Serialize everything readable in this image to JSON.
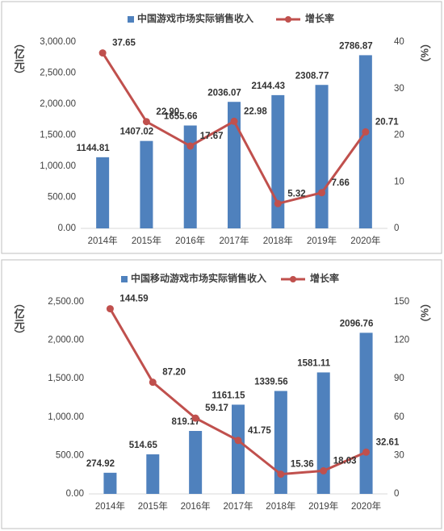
{
  "chart_data": [
    {
      "type": "combo",
      "categories": [
        "2014年",
        "2015年",
        "2016年",
        "2017年",
        "2018年",
        "2019年",
        "2020年"
      ],
      "y_label": "（亿元）",
      "y2_label": "（%）",
      "ylim": [
        0,
        3000
      ],
      "yticks": [
        {
          "value": 0,
          "label": "0.00"
        },
        {
          "value": 500,
          "label": "500.00"
        },
        {
          "value": 1000,
          "label": "1,000.00"
        },
        {
          "value": 1500,
          "label": "1,500.00"
        },
        {
          "value": 2000,
          "label": "2,000.00"
        },
        {
          "value": 2500,
          "label": "2,500.00"
        },
        {
          "value": 3000,
          "label": "3,000.00"
        }
      ],
      "y2lim": [
        0,
        40
      ],
      "y2ticks": [
        0,
        10,
        20,
        30,
        40
      ],
      "series": [
        {
          "name": "中国游戏市场实际销售收入",
          "type": "bar",
          "color": "#4f81bd",
          "values": [
            1144.81,
            1407.02,
            1655.66,
            2036.07,
            2144.43,
            2308.77,
            2786.87
          ]
        },
        {
          "name": "增长率",
          "type": "line",
          "axis": "y2",
          "color": "#c0504d",
          "values": [
            37.65,
            22.9,
            17.67,
            22.98,
            5.32,
            7.66,
            20.71
          ],
          "value_labels": [
            "37.65",
            "22.90",
            "17.67",
            "22.98",
            "5.32",
            "7.66",
            "20.71"
          ]
        }
      ]
    },
    {
      "type": "combo",
      "categories": [
        "2014年",
        "2015年",
        "2016年",
        "2017年",
        "2018年",
        "2019年",
        "2020年"
      ],
      "y_label": "（亿元）",
      "y2_label": "（%）",
      "ylim": [
        0,
        2500
      ],
      "yticks": [
        {
          "value": 0,
          "label": "0.00"
        },
        {
          "value": 500,
          "label": "500.00"
        },
        {
          "value": 1000,
          "label": "1,000.00"
        },
        {
          "value": 1500,
          "label": "1,500.00"
        },
        {
          "value": 2000,
          "label": "2,000.00"
        },
        {
          "value": 2500,
          "label": "2,500.00"
        }
      ],
      "y2lim": [
        0,
        150
      ],
      "y2ticks": [
        0,
        30,
        60,
        90,
        120,
        150
      ],
      "series": [
        {
          "name": "中国移动游戏市场实际销售收入",
          "type": "bar",
          "color": "#4f81bd",
          "values": [
            274.92,
            514.65,
            819.17,
            1161.15,
            1339.56,
            1581.11,
            2096.76
          ]
        },
        {
          "name": "增长率",
          "type": "line",
          "axis": "y2",
          "color": "#c0504d",
          "values": [
            144.59,
            87.2,
            59.17,
            41.75,
            15.36,
            18.03,
            32.61
          ],
          "value_labels": [
            "144.59",
            "87.20",
            "59.17",
            "41.75",
            "15.36",
            "18.03",
            "32.61"
          ]
        }
      ]
    }
  ]
}
